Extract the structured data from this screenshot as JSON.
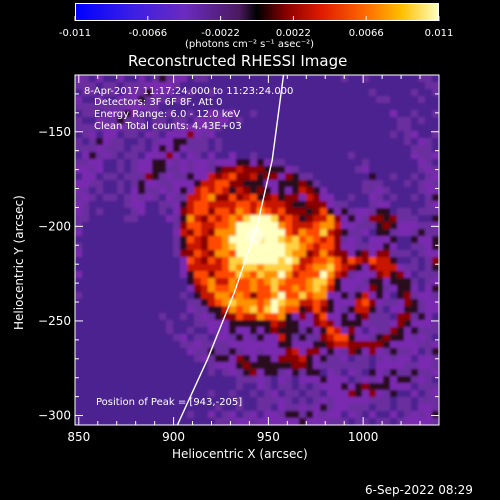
{
  "colorbar": {
    "ticks": [
      "-0.011",
      "-0.0066",
      "-0.0022",
      "0.0022",
      "0.0066",
      "0.011"
    ],
    "min": -0.011,
    "max": 0.011,
    "unit_label": "(photons cm⁻² s⁻¹ asec⁻²)",
    "colors": [
      "#1010ff",
      "#5a2cc8",
      "#6a2a8a",
      "#2a0a14",
      "#b40000",
      "#ff4000",
      "#ffb000",
      "#ffffb0"
    ]
  },
  "chart_data": {
    "type": "heatmap",
    "title": "Reconstructed RHESSI Image",
    "xlabel": "Heliocentric X (arcsec)",
    "ylabel": "Heliocentric Y (arcsec)",
    "xlim": [
      848,
      1040
    ],
    "ylim": [
      -305,
      -120
    ],
    "xticks": [
      850,
      900,
      950,
      1000
    ],
    "yticks": [
      -150,
      -200,
      -250,
      -300
    ],
    "xtick_labels": [
      "850",
      "900",
      "950",
      "1000"
    ],
    "ytick_labels": [
      "−150",
      "−200",
      "−250",
      "−300"
    ],
    "annotations": [
      "8-Apr-2017 11:17:24.000 to 11:23:24.000",
      "Detectors: 3F 6F 8F, Att 0",
      "Energy Range: 6.0 - 12.0 keV",
      "Clean     Total counts: 4.43E+03"
    ],
    "peak_label": "Position of Peak = [943,-205]",
    "peak": [
      943,
      -205
    ],
    "limb_curve": {
      "x": [
        902,
        918,
        932,
        944,
        952,
        958
      ],
      "y": [
        -305,
        -270,
        -235,
        -200,
        -165,
        -120
      ]
    },
    "colormap": "RHESSI red-temperature with purple/blue negatives",
    "grid": false
  },
  "footer": {
    "date": "6-Sep-2022 08:29"
  }
}
